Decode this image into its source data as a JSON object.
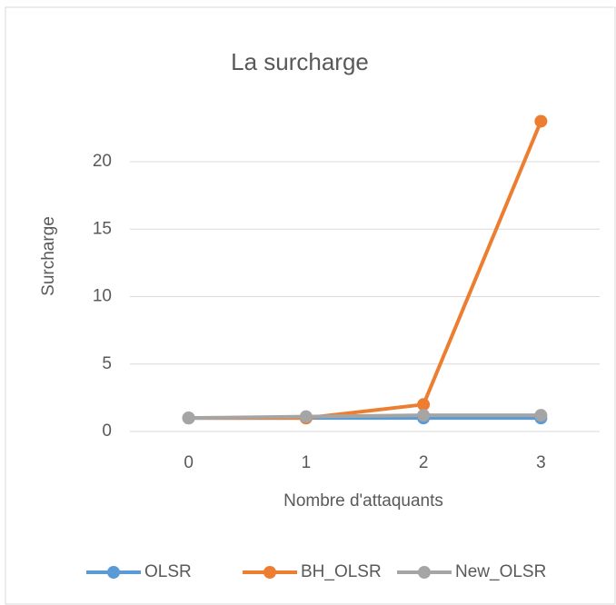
{
  "chart_data": {
    "type": "line",
    "title": "La surcharge",
    "x_label": "Nombre d'attaquants",
    "y_label": "Surcharge",
    "categories": [
      "0",
      "1",
      "2",
      "3"
    ],
    "series": [
      {
        "name": "OLSR",
        "color": "#5b9bd5",
        "values": [
          1,
          1,
          1,
          1
        ]
      },
      {
        "name": "BH_OLSR",
        "color": "#ed7d31",
        "values": [
          1,
          1,
          2,
          23
        ]
      },
      {
        "name": "New_OLSR",
        "color": "#a5a5a5",
        "values": [
          1,
          1.1,
          1.2,
          1.2
        ]
      }
    ],
    "ylim": [
      0,
      25
    ],
    "yticks": [
      0,
      5,
      10,
      15,
      20
    ],
    "grid": true,
    "legend": "bottom"
  }
}
